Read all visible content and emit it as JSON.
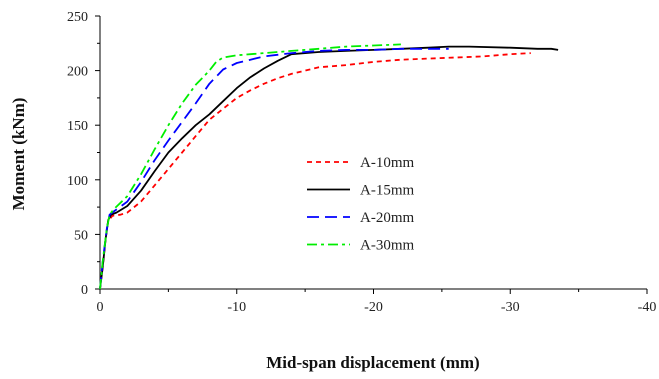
{
  "chart_data": {
    "type": "line",
    "title": "",
    "xlabel": "Mid-span displacement (mm)",
    "ylabel": "Moment (kNm)",
    "xlim": [
      0,
      -40
    ],
    "ylim": [
      0,
      250
    ],
    "x_ticks": [
      "0",
      "-10",
      "-20",
      "-30",
      "-40"
    ],
    "y_ticks": [
      "0",
      "50",
      "100",
      "150",
      "200",
      "250"
    ],
    "grid": false,
    "legend_position": "center",
    "series": [
      {
        "name": "A-10mm",
        "color": "#ff0000",
        "dash": "short-dash",
        "points": [
          [
            0,
            0
          ],
          [
            -0.2,
            20
          ],
          [
            -0.4,
            45
          ],
          [
            -0.6,
            62
          ],
          [
            -0.9,
            67
          ],
          [
            -1.5,
            68
          ],
          [
            -2,
            70
          ],
          [
            -3,
            80
          ],
          [
            -4,
            95
          ],
          [
            -5,
            110
          ],
          [
            -6,
            125
          ],
          [
            -7,
            140
          ],
          [
            -8,
            155
          ],
          [
            -9,
            165
          ],
          [
            -10,
            175
          ],
          [
            -11,
            182
          ],
          [
            -12,
            188
          ],
          [
            -13,
            193
          ],
          [
            -14,
            197
          ],
          [
            -15,
            200
          ],
          [
            -16,
            203
          ],
          [
            -18,
            205
          ],
          [
            -20,
            208
          ],
          [
            -22,
            210
          ],
          [
            -24,
            211
          ],
          [
            -26,
            212
          ],
          [
            -28,
            213
          ],
          [
            -30,
            215
          ],
          [
            -31.5,
            216
          ]
        ]
      },
      {
        "name": "A-15mm",
        "color": "#000000",
        "dash": "solid",
        "points": [
          [
            0,
            0
          ],
          [
            -0.2,
            20
          ],
          [
            -0.4,
            45
          ],
          [
            -0.6,
            63
          ],
          [
            -0.8,
            68
          ],
          [
            -1.2,
            70
          ],
          [
            -2,
            76
          ],
          [
            -3,
            90
          ],
          [
            -4,
            108
          ],
          [
            -5,
            125
          ],
          [
            -6,
            138
          ],
          [
            -7,
            150
          ],
          [
            -8,
            160
          ],
          [
            -9,
            172
          ],
          [
            -10,
            184
          ],
          [
            -11,
            194
          ],
          [
            -12,
            202
          ],
          [
            -13,
            209
          ],
          [
            -14,
            215
          ],
          [
            -16,
            217
          ],
          [
            -18,
            218
          ],
          [
            -20,
            219
          ],
          [
            -22,
            220
          ],
          [
            -24,
            221
          ],
          [
            -25.5,
            222
          ],
          [
            -27,
            222
          ],
          [
            -30,
            221
          ],
          [
            -32,
            220
          ],
          [
            -33,
            220
          ],
          [
            -33.5,
            219
          ]
        ]
      },
      {
        "name": "A-20mm",
        "color": "#0000ff",
        "dash": "long-dash",
        "points": [
          [
            0,
            0
          ],
          [
            -0.2,
            25
          ],
          [
            -0.5,
            55
          ],
          [
            -0.7,
            68
          ],
          [
            -1,
            71
          ],
          [
            -2,
            80
          ],
          [
            -3,
            98
          ],
          [
            -4,
            118
          ],
          [
            -5,
            136
          ],
          [
            -6,
            153
          ],
          [
            -7,
            170
          ],
          [
            -8,
            188
          ],
          [
            -9,
            201
          ],
          [
            -10,
            207
          ],
          [
            -11,
            210
          ],
          [
            -12,
            213
          ],
          [
            -14,
            216
          ],
          [
            -16,
            218
          ],
          [
            -18,
            219
          ],
          [
            -20,
            219
          ],
          [
            -22,
            220
          ],
          [
            -24,
            220
          ],
          [
            -25.5,
            220
          ]
        ]
      },
      {
        "name": "A-30mm",
        "color": "#00ee00",
        "dash": "dash-dot",
        "points": [
          [
            0,
            0
          ],
          [
            -0.2,
            25
          ],
          [
            -0.5,
            55
          ],
          [
            -0.7,
            68
          ],
          [
            -1,
            73
          ],
          [
            -2,
            85
          ],
          [
            -3,
            105
          ],
          [
            -4,
            128
          ],
          [
            -5,
            150
          ],
          [
            -6,
            170
          ],
          [
            -7,
            187
          ],
          [
            -8,
            200
          ],
          [
            -8.5,
            208
          ],
          [
            -9,
            212
          ],
          [
            -10,
            214
          ],
          [
            -11,
            215
          ],
          [
            -12,
            216
          ],
          [
            -14,
            218
          ],
          [
            -16,
            220
          ],
          [
            -18,
            222
          ],
          [
            -20,
            223
          ],
          [
            -22,
            224
          ]
        ]
      }
    ]
  }
}
